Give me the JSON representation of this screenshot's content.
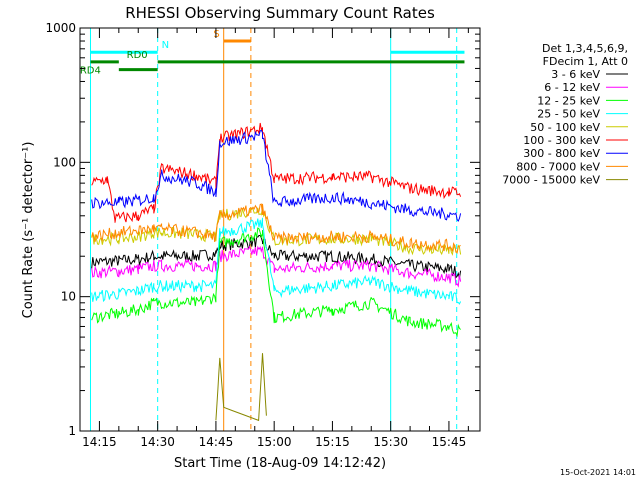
{
  "chart_data": {
    "type": "line",
    "title": "RHESSI Observing Summary Count Rates",
    "xlabel": "Start Time (18-Aug-09 14:12:42)",
    "ylabel": "Count Rate (s⁻¹ detector⁻¹)",
    "y_scale": "log",
    "ylim": [
      1,
      1000
    ],
    "xlim": [
      "14:10:00",
      "15:53:00"
    ],
    "x_ticks": [
      "14:15",
      "14:30",
      "14:45",
      "15:00",
      "15:15",
      "15:30",
      "15:45"
    ],
    "y_ticks": [
      "1",
      "10",
      "100",
      "1000"
    ],
    "footer_date": "15-Oct-2021 14:01",
    "legend": {
      "header": [
        "Det 1,3,4,5,6,9,",
        "FDecim 1, Att 0"
      ],
      "placement": "right"
    },
    "series": [
      {
        "name": "3 - 6 keV",
        "color": "#000000",
        "x": [
          "14:13",
          "14:20",
          "14:25",
          "14:29",
          "14:31",
          "14:40",
          "14:45",
          "14:46",
          "14:57",
          "15:00",
          "15:15",
          "15:25",
          "15:35",
          "15:45",
          "15:48"
        ],
        "values": [
          18,
          18.5,
          19,
          20,
          20,
          20,
          21,
          24,
          26,
          20,
          20,
          19,
          17,
          16,
          15
        ]
      },
      {
        "name": "6 - 12 keV",
        "color": "#ff00ff",
        "x": [
          "14:13",
          "14:20",
          "14:25",
          "14:29",
          "14:31",
          "14:40",
          "14:45",
          "14:46",
          "14:57",
          "15:00",
          "15:15",
          "15:25",
          "15:35",
          "15:45",
          "15:48"
        ],
        "values": [
          15,
          15.5,
          16,
          17,
          17,
          17,
          17,
          20,
          22,
          16,
          17,
          17,
          15,
          14,
          13
        ]
      },
      {
        "name": "12 - 25 keV",
        "color": "#00ff00",
        "x": [
          "14:13",
          "14:20",
          "14:25",
          "14:29",
          "14:31",
          "14:40",
          "14:45",
          "14:46",
          "14:57",
          "15:00",
          "15:15",
          "15:25",
          "15:35",
          "15:45",
          "15:48"
        ],
        "values": [
          7,
          7.5,
          8,
          9,
          9,
          9,
          10,
          25,
          30,
          7,
          8,
          9,
          6.5,
          6,
          5.5
        ]
      },
      {
        "name": "25 - 50 keV",
        "color": "#00ffff",
        "x": [
          "14:13",
          "14:20",
          "14:25",
          "14:29",
          "14:31",
          "14:40",
          "14:45",
          "14:46",
          "14:57",
          "15:00",
          "15:15",
          "15:25",
          "15:35",
          "15:45",
          "15:48"
        ],
        "values": [
          10,
          10.5,
          11,
          12,
          12,
          12,
          12,
          30,
          35,
          11,
          12,
          13,
          11,
          10,
          9.5
        ]
      },
      {
        "name": "50 - 100 keV",
        "color": "#cccc00",
        "x": [
          "14:13",
          "14:20",
          "14:25",
          "14:29",
          "14:31",
          "14:40",
          "14:45",
          "14:46",
          "14:57",
          "15:00",
          "15:15",
          "15:25",
          "15:35",
          "15:45",
          "15:48"
        ],
        "values": [
          27,
          27,
          28,
          30,
          30,
          29,
          28,
          40,
          45,
          26,
          27,
          27,
          23,
          22,
          22
        ]
      },
      {
        "name": "100 - 300 keV",
        "color": "#ff0000",
        "x": [
          "14:13",
          "14:17",
          "14:19",
          "14:25",
          "14:29",
          "14:31",
          "14:40",
          "14:45",
          "14:46",
          "14:57",
          "15:00",
          "15:15",
          "15:25",
          "15:35",
          "15:45",
          "15:48"
        ],
        "values": [
          70,
          75,
          38,
          40,
          45,
          90,
          80,
          70,
          150,
          180,
          75,
          78,
          78,
          64,
          60,
          59
        ]
      },
      {
        "name": "300 - 800 keV",
        "color": "#0000ff",
        "x": [
          "14:13",
          "14:20",
          "14:25",
          "14:29",
          "14:31",
          "14:40",
          "14:45",
          "14:46",
          "14:57",
          "15:00",
          "15:15",
          "15:25",
          "15:35",
          "15:45",
          "15:48"
        ],
        "values": [
          50,
          50,
          52,
          55,
          80,
          70,
          60,
          140,
          160,
          50,
          55,
          50,
          44,
          41,
          40
        ]
      },
      {
        "name": "800 - 7000 keV",
        "color": "#ff8800",
        "x": [
          "14:13",
          "14:20",
          "14:25",
          "14:29",
          "14:31",
          "14:40",
          "14:45",
          "14:46",
          "14:57",
          "15:00",
          "15:15",
          "15:25",
          "15:35",
          "15:45",
          "15:48"
        ],
        "values": [
          28,
          30,
          31,
          32,
          32,
          30,
          28,
          40,
          45,
          27,
          28,
          28,
          25,
          24,
          23
        ]
      },
      {
        "name": "7000 - 15000 keV",
        "color": "#888800",
        "x": [
          "14:45",
          "14:46",
          "14:47",
          "14:56",
          "14:57",
          "14:58"
        ],
        "values": [
          1.2,
          3.5,
          1.5,
          1.2,
          3.8,
          1.3
        ]
      }
    ],
    "vlines": [
      {
        "x": "14:30",
        "color": "#00ffff",
        "style": "dashed"
      },
      {
        "x": "15:47",
        "color": "#00ffff",
        "style": "dashed"
      },
      {
        "x": "14:12:42",
        "color": "#00ffff",
        "style": "solid"
      },
      {
        "x": "15:30",
        "color": "#00ffff",
        "style": "solid"
      },
      {
        "x": "14:47",
        "color": "#ff8800",
        "style": "solid"
      },
      {
        "x": "14:54",
        "color": "#ff8800",
        "style": "dashed"
      }
    ],
    "flag_bars": [
      {
        "label": "N",
        "color": "#00ffff",
        "y": 660,
        "segments": [
          [
            "14:12:42",
            "14:30"
          ],
          [
            "15:30",
            "15:49"
          ]
        ]
      },
      {
        "label": "S",
        "color": "#ff8800",
        "y": 800,
        "segments": [
          [
            "14:47",
            "14:54"
          ]
        ]
      },
      {
        "label": "RD0",
        "color": "#008800",
        "y": 560,
        "segments": [
          [
            "14:30",
            "15:49"
          ]
        ]
      },
      {
        "label": "",
        "color": "#008800",
        "y": 560,
        "segments": [
          [
            "14:12:42",
            "14:20"
          ]
        ]
      },
      {
        "label": "RD4",
        "color": "#008800",
        "y": 490,
        "segments": [
          [
            "14:20",
            "14:30"
          ]
        ]
      }
    ]
  }
}
